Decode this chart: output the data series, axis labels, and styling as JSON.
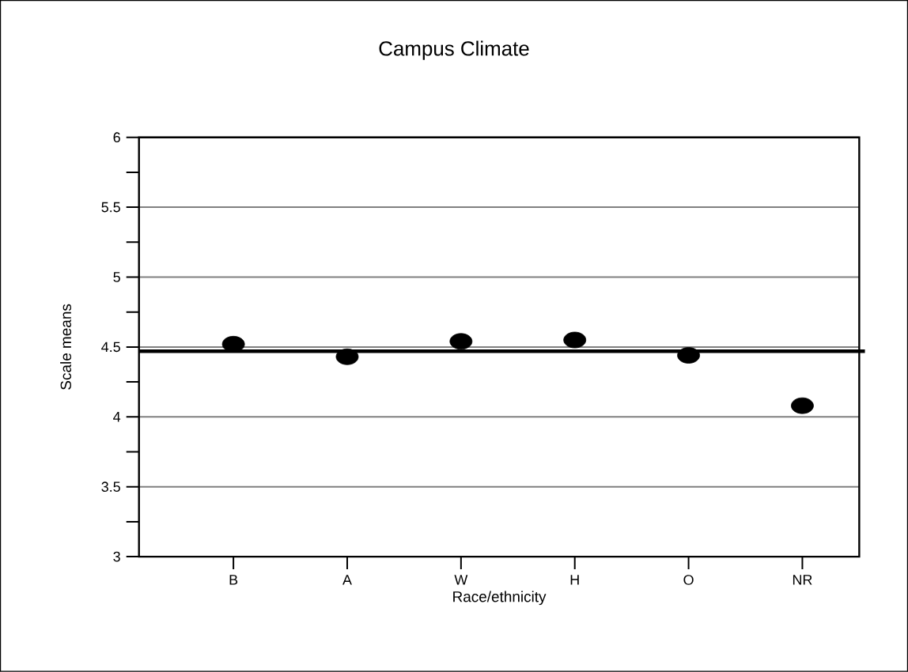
{
  "chart_data": {
    "type": "scatter",
    "title": "Campus Climate",
    "xlabel": "Race/ethnicity",
    "ylabel": "Scale means",
    "categories": [
      "B",
      "A",
      "W",
      "H",
      "O",
      "NR"
    ],
    "values": [
      4.52,
      4.43,
      4.54,
      4.55,
      4.44,
      4.08
    ],
    "color": "#000000",
    "ylim": [
      3,
      6
    ],
    "yticks": [
      3,
      {
        "value": 3.25,
        "label": null
      },
      3.5,
      {
        "value": 3.75,
        "label": null
      },
      4,
      {
        "value": 4.25,
        "label": null
      },
      4.5,
      {
        "value": 4.75,
        "label": null
      },
      5,
      {
        "value": 5.25,
        "label": null
      },
      5.5,
      {
        "value": 5.75,
        "label": null
      },
      6
    ],
    "ref_lines": [
      {
        "axis": "y",
        "value": 4.47,
        "color": "#000000"
      }
    ],
    "grid": "y",
    "marker": "circle"
  }
}
